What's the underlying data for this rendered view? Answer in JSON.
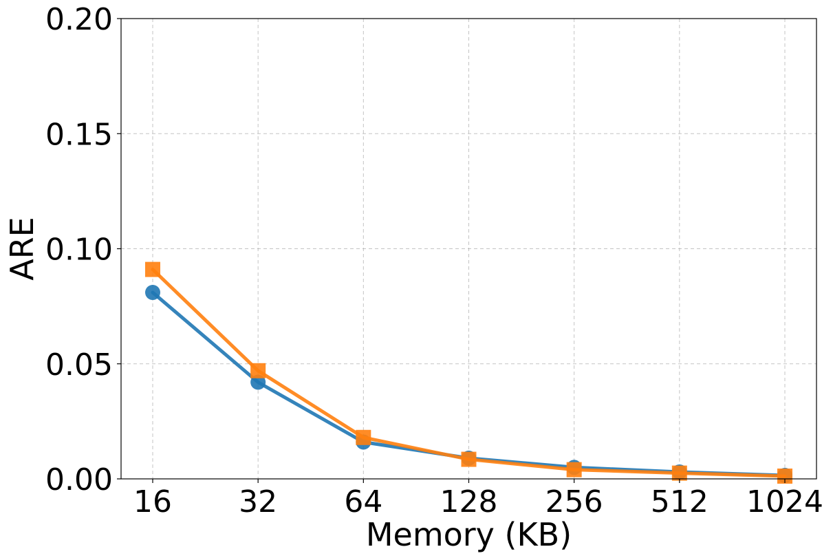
{
  "chart_data": {
    "type": "line",
    "xlabel": "Memory (KB)",
    "ylabel": "ARE",
    "categories": [
      "16",
      "32",
      "64",
      "128",
      "256",
      "512",
      "1024"
    ],
    "ylim": [
      0,
      0.2
    ],
    "yticks": [
      "0.00",
      "0.05",
      "0.10",
      "0.15",
      "0.20"
    ],
    "ytick_values": [
      0,
      0.05,
      0.1,
      0.15,
      0.2
    ],
    "grid": true,
    "series": [
      {
        "marker": "circle",
        "color": "#1f77b4",
        "values": [
          0.081,
          0.042,
          0.016,
          0.009,
          0.005,
          0.003,
          0.0015
        ]
      },
      {
        "marker": "square",
        "color": "#ff7f0e",
        "values": [
          0.091,
          0.047,
          0.018,
          0.0085,
          0.004,
          0.0025,
          0.0012
        ]
      }
    ]
  }
}
